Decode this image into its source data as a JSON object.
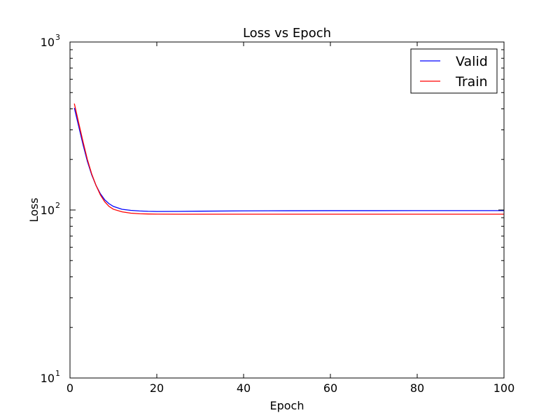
{
  "chart_data": {
    "type": "line",
    "title": "Loss vs Epoch",
    "xlabel": "Epoch",
    "ylabel": "Loss",
    "xlim": [
      0,
      100
    ],
    "ylim": [
      10,
      1000
    ],
    "yscale": "log",
    "x_ticks": [
      "0",
      "20",
      "40",
      "60",
      "80",
      "100"
    ],
    "y_ticks": [
      {
        "base": "10",
        "exp": "1"
      },
      {
        "base": "10",
        "exp": "2"
      },
      {
        "base": "10",
        "exp": "3"
      }
    ],
    "grid": false,
    "legend_position": "top-right",
    "x": [
      1,
      2,
      3,
      4,
      5,
      6,
      7,
      8,
      9,
      10,
      12,
      14,
      16,
      18,
      20,
      25,
      30,
      40,
      50,
      60,
      70,
      80,
      90,
      100
    ],
    "series": [
      {
        "name": "Valid",
        "color": "#0000ff",
        "values": [
          405,
          315,
          245,
          195,
          162,
          140,
          125,
          115,
          109,
          105,
          101,
          99.5,
          98.7,
          98.2,
          98.0,
          98.1,
          98.4,
          98.8,
          99.0,
          99.1,
          99.1,
          99.2,
          99.2,
          99.2
        ]
      },
      {
        "name": "Train",
        "color": "#ff0000",
        "values": [
          430,
          330,
          255,
          200,
          164,
          140,
          123,
          112,
          105,
          101,
          97.5,
          95.8,
          95.0,
          94.7,
          94.5,
          94.4,
          94.4,
          94.4,
          94.4,
          94.4,
          94.4,
          94.4,
          94.4,
          94.4
        ]
      }
    ]
  }
}
